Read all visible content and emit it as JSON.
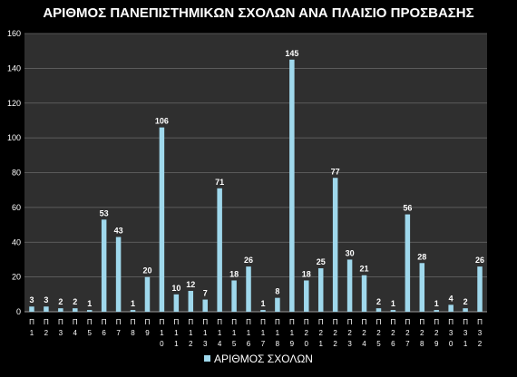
{
  "chart_data": {
    "type": "bar",
    "title": "ΑΡΙΘΜΟΣ ΠΑΝΕΠΙΣΤΗΜΙΚΩΝ ΣΧΟΛΩΝ ΑΝΑ ΠΛΑΙΣΙΟ ΠΡΟΣΒΑΣΗΣ",
    "xlabel": "",
    "ylabel": "",
    "ylim": [
      0,
      160
    ],
    "yticks": [
      0,
      20,
      40,
      60,
      80,
      100,
      120,
      140,
      160
    ],
    "grid": true,
    "legend": "bottom",
    "categories": [
      "Π1",
      "Π2",
      "Π3",
      "Π4",
      "Π5",
      "Π6",
      "Π7",
      "Π8",
      "Π9",
      "Π10",
      "Π11",
      "Π12",
      "Π13",
      "Π14",
      "Π15",
      "Π16",
      "Π17",
      "Π18",
      "Π19",
      "Π20",
      "Π21",
      "Π22",
      "Π23",
      "Π24",
      "Π25",
      "Π26",
      "Π27",
      "Π28",
      "Π29",
      "Π30",
      "Π31",
      "Π32"
    ],
    "series": [
      {
        "name": "ΑΡΙΘΜΟΣ ΣΧΟΛΩΝ",
        "color": "#9fd8ec",
        "values": [
          3,
          3,
          2,
          2,
          1,
          53,
          43,
          1,
          20,
          106,
          10,
          12,
          7,
          71,
          18,
          26,
          1,
          8,
          145,
          18,
          25,
          77,
          30,
          21,
          2,
          1,
          56,
          28,
          1,
          4,
          2,
          26
        ]
      }
    ]
  }
}
